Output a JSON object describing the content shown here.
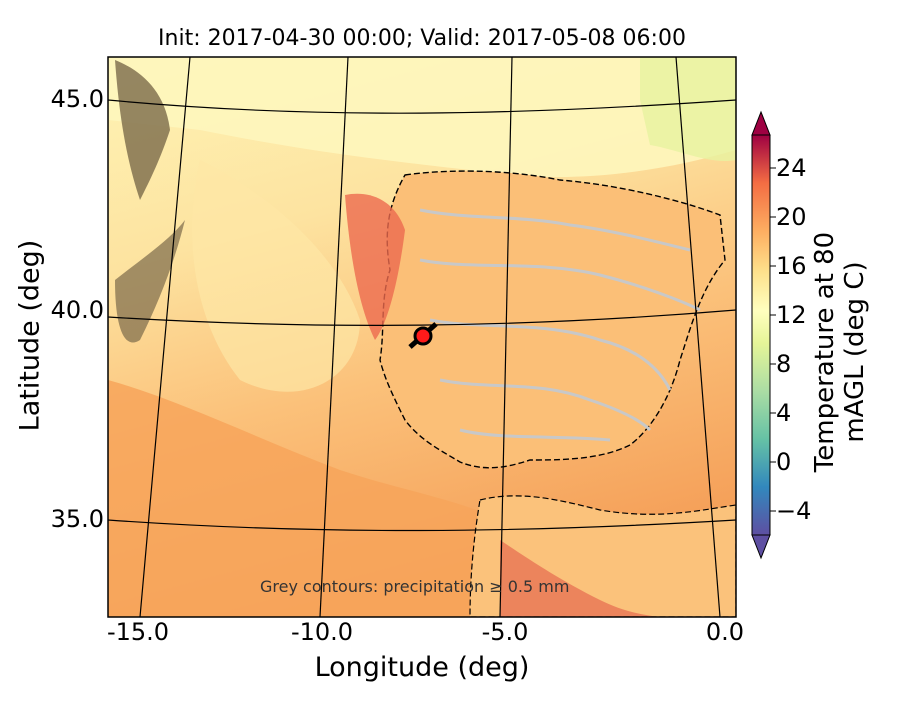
{
  "title": "Init: 2017-04-30 00:00; Valid: 2017-05-08 06:00",
  "xlabel": "Longitude (deg)",
  "ylabel": "Latitude (deg)",
  "colorbar_label": "Temperature at 80 mAGL (deg C)",
  "annotation": "Grey contours: precipitation ≥ 0.5 mm",
  "x_ticks": [
    "-15.0",
    "-10.0",
    "-5.0",
    "0.0"
  ],
  "y_ticks": [
    "45.0",
    "40.0",
    "35.0"
  ],
  "colorbar_ticks": [
    "24",
    "20",
    "16",
    "12",
    "8",
    "4",
    "0",
    "−4"
  ],
  "colors": {
    "ocean_warm": "#f5a65a",
    "ocean_mid": "#fbd08a",
    "ocean_cool": "#fef2b2",
    "land_hot": "#e2574a",
    "contour_grey": "#c8c8c8",
    "marker": "#ff1a1a"
  },
  "chart_data": {
    "type": "heatmap",
    "variable": "Temperature at 80 mAGL",
    "units": "deg C",
    "xlim": [
      -16,
      0
    ],
    "ylim": [
      33,
      46
    ],
    "colorbar_range": [
      -6,
      28
    ],
    "colorbar_ticks": [
      -4,
      0,
      4,
      8,
      12,
      16,
      20,
      24
    ],
    "marker_location": {
      "lon": -7.7,
      "lat": 39.4
    }
  }
}
